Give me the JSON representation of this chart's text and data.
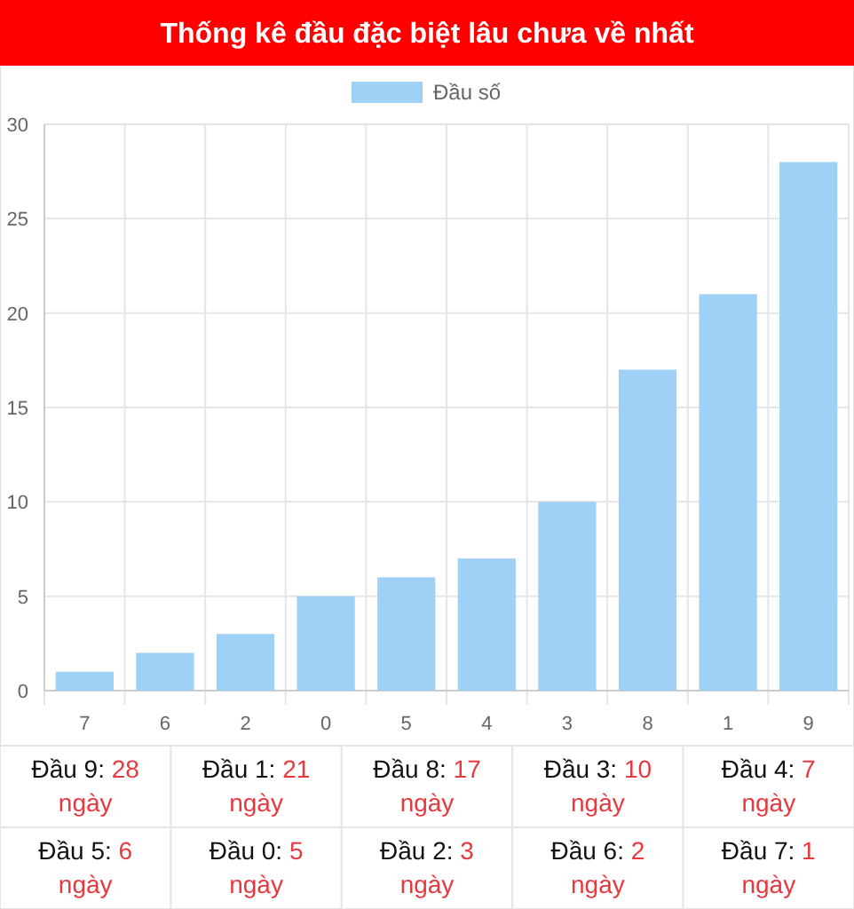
{
  "chart_data": {
    "type": "bar",
    "title": "Thống kê đầu đặc biệt lâu chưa về nhất",
    "categories": [
      "7",
      "6",
      "2",
      "0",
      "5",
      "4",
      "3",
      "8",
      "1",
      "9"
    ],
    "series": [
      {
        "name": "Đầu số",
        "color": "#9fd0f5",
        "values": [
          1,
          2,
          3,
          5,
          6,
          7,
          10,
          17,
          21,
          28
        ]
      }
    ],
    "ylim": [
      0,
      30
    ],
    "yticks": [
      0,
      5,
      10,
      15,
      20,
      25,
      30
    ],
    "grid": true,
    "legend": "top",
    "annotations": [
      "Đầu 9: 28 ngày",
      "Đầu 1: 21 ngày",
      "Đầu 8: 17 ngày",
      "Đầu 3: 10 ngày",
      "Đầu 4: 7 ngày",
      "Đầu 5: 6 ngày",
      "Đầu 0: 5 ngày",
      "Đầu 2: 3 ngày",
      "Đầu 6: 2 ngày",
      "Đầu 7: 1 ngày"
    ]
  }
}
